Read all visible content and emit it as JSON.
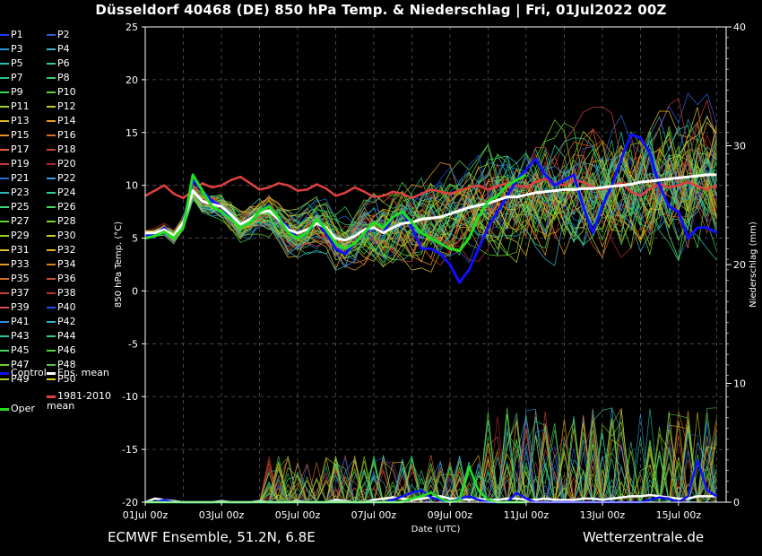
{
  "header": {
    "title": "Düsseldorf 40468 (DE)  850 hPa Temp. & Niederschlag | Fri, 01Jul2022 00Z"
  },
  "footer": {
    "left": "ECMWF Ensemble, 51.2N, 6.8E",
    "right": "Wetterzentrale.de"
  },
  "legend": {
    "members": [
      "P1",
      "P2",
      "P3",
      "P4",
      "P5",
      "P6",
      "P7",
      "P8",
      "P9",
      "P10",
      "P11",
      "P12",
      "P13",
      "P14",
      "P15",
      "P16",
      "P17",
      "P18",
      "P19",
      "P20",
      "P21",
      "P22",
      "P23",
      "P24",
      "P25",
      "P26",
      "P27",
      "P28",
      "P29",
      "P30",
      "P31",
      "P32",
      "P33",
      "P34",
      "P35",
      "P36",
      "P37",
      "P38",
      "P39",
      "P40",
      "P41",
      "P42",
      "P43",
      "P44",
      "P45",
      "P46",
      "P47",
      "P48",
      "P49",
      "P50"
    ],
    "member_colors": [
      "#1e3cff",
      "#2a5fd8",
      "#1e9bd8",
      "#3fb3c8",
      "#18c4b0",
      "#2ed18a",
      "#22c48a",
      "#3bd060",
      "#36d84a",
      "#5fd02a",
      "#9fd81e",
      "#c8c81a",
      "#e0b81c",
      "#e8a020",
      "#e89030",
      "#d8702a",
      "#e06030",
      "#c84a2a",
      "#c83a3a",
      "#b02a2a",
      "#2a6ad8",
      "#3aa0e0",
      "#30b8c0",
      "#2ad0a0",
      "#38d878",
      "#48d858",
      "#60d838",
      "#78d82a",
      "#98d020",
      "#c8d01e",
      "#e0c020",
      "#e8b020",
      "#e89a28",
      "#d88028",
      "#d86828",
      "#c85030",
      "#c84040",
      "#b83030",
      "#e05050",
      "#2050e8",
      "#3090e0",
      "#30b0d0",
      "#28c8a8",
      "#30d080",
      "#40d860",
      "#50d840",
      "#68d030",
      "#58c048",
      "#a8d020",
      "#e8d020"
    ],
    "control": "Control",
    "ens_mean": "Ens. mean",
    "clim_mean": "1981-2010\nmean",
    "oper": "Oper"
  },
  "chart_data": {
    "type": "line",
    "title": "Düsseldorf 40468 (DE)  850 hPa Temp. & Niederschlag | Fri, 01Jul2022 00Z",
    "xlabel": "Date (UTC)",
    "ylabel": "850 hPa Temp. (°C)",
    "y2label": "Niederschlag (mm)",
    "xlim_hours": [
      0,
      366
    ],
    "ylim": [
      -20,
      25
    ],
    "y2lim": [
      0,
      40
    ],
    "x_ticks": [
      "01Jul 00z",
      "03Jul 00z",
      "05Jul 00z",
      "07Jul 00z",
      "09Jul 00z",
      "11Jul 00z",
      "13Jul 00z",
      "15Jul 00z"
    ],
    "y_ticks": [
      25,
      20,
      15,
      10,
      5,
      0,
      -5,
      -10,
      -15,
      -20
    ],
    "y2_ticks": [
      40,
      30,
      20,
      10,
      0
    ],
    "grid": true,
    "colors": {
      "control": "#1010ff",
      "ens_mean": "#ffffff",
      "clim_mean": "#e04040",
      "oper": "#20e020"
    },
    "series_temp": {
      "control": [
        5.2,
        5.3,
        6.0,
        5.0,
        6.5,
        10.5,
        9.5,
        8.5,
        8.0,
        7.0,
        6.0,
        6.5,
        7.5,
        8.0,
        7.0,
        6.0,
        5.0,
        5.5,
        6.5,
        5.5,
        4.0,
        3.5,
        4.5,
        5.5,
        6.0,
        5.5,
        7.0,
        7.5,
        6.0,
        4.0,
        4.0,
        3.5,
        2.5,
        0.8,
        2.0,
        4.0,
        6.0,
        7.5,
        9.0,
        10.5,
        11.5,
        12.5,
        11.0,
        10.0,
        10.5,
        11.0,
        8.0,
        5.5,
        8.0,
        10.0,
        12.5,
        14.8,
        14.5,
        13.0,
        10.0,
        8.0,
        7.5,
        5.0,
        6.0,
        6.0,
        5.5
      ],
      "ens_mean": [
        5.5,
        5.5,
        5.8,
        5.2,
        6.5,
        9.5,
        8.5,
        8.2,
        8.0,
        7.2,
        6.3,
        6.8,
        7.4,
        7.6,
        6.8,
        5.8,
        5.5,
        5.8,
        6.4,
        6.0,
        5.0,
        4.8,
        5.2,
        5.8,
        6.0,
        5.5,
        6.0,
        6.4,
        6.5,
        6.8,
        6.9,
        7.0,
        7.3,
        7.6,
        7.9,
        8.1,
        8.3,
        8.6,
        8.9,
        8.9,
        9.1,
        9.3,
        9.4,
        9.5,
        9.6,
        9.6,
        9.7,
        9.7,
        9.8,
        9.9,
        10.0,
        10.1,
        10.3,
        10.4,
        10.5,
        10.6,
        10.7,
        10.8,
        10.9,
        11.0,
        11.0
      ],
      "clim_mean": [
        9.0,
        9.5,
        10.0,
        9.2,
        8.8,
        9.5,
        10.2,
        9.8,
        10.0,
        10.5,
        10.8,
        10.2,
        9.6,
        9.8,
        10.2,
        10.0,
        9.5,
        9.6,
        10.1,
        9.7,
        9.0,
        9.3,
        9.8,
        9.4,
        8.9,
        9.0,
        9.4,
        9.2,
        8.8,
        9.2,
        9.6,
        9.4,
        9.2,
        9.5,
        9.8,
        10.0,
        9.6,
        9.9,
        10.2,
        10.0,
        9.8,
        10.3,
        10.6,
        10.2,
        10.0,
        10.5,
        10.3,
        9.8,
        9.6,
        10.0,
        10.2,
        9.4,
        9.0,
        9.7,
        10.1,
        9.8,
        10.0,
        10.3,
        9.9,
        9.6,
        10.0
      ],
      "oper": [
        5.0,
        5.2,
        5.6,
        5.0,
        6.0,
        11.0,
        9.5,
        8.0,
        7.5,
        6.8,
        6.0,
        6.5,
        7.5,
        8.0,
        7.0,
        5.5,
        5.0,
        5.5,
        6.8,
        5.8,
        4.5,
        4.0,
        4.5,
        5.5,
        6.5,
        6.0,
        7.0,
        7.5,
        6.5,
        5.5,
        5.0,
        4.5,
        4.0,
        3.8,
        5.0,
        7.0,
        8.5,
        9.0,
        10.0,
        10.5,
        11.0
      ]
    },
    "series_precip": {
      "control": [
        0,
        0,
        0.2,
        0,
        0,
        0,
        0,
        0,
        0,
        0,
        0,
        0,
        0,
        0,
        0,
        0,
        0,
        0,
        0,
        0,
        0,
        0,
        0,
        0,
        0,
        0,
        0.2,
        0.5,
        0.8,
        1.0,
        0.4,
        0.2,
        0,
        0.3,
        0.5,
        0.2,
        0,
        0,
        0,
        0.8,
        0.3,
        0,
        0,
        0,
        0,
        0,
        0,
        0,
        0,
        0,
        0,
        0,
        0,
        0.2,
        0.4,
        0.3,
        0,
        0.5,
        3.5,
        1.0,
        0.5
      ],
      "ens_mean": [
        0,
        0.3,
        0.2,
        0.1,
        0,
        0,
        0,
        0,
        0.1,
        0,
        0,
        0,
        0.1,
        0,
        0,
        0,
        0.1,
        0,
        0,
        0,
        0.2,
        0.1,
        0,
        0,
        0.2,
        0.3,
        0.4,
        0.3,
        0.2,
        0.3,
        0.4,
        0.5,
        0.3,
        0.3,
        0.2,
        0.3,
        0.2,
        0.2,
        0.3,
        0.3,
        0.2,
        0.2,
        0.3,
        0.2,
        0.2,
        0.2,
        0.3,
        0.3,
        0.2,
        0.3,
        0.4,
        0.5,
        0.5,
        0.6,
        0.5,
        0.4,
        0.3,
        0.3,
        0.5,
        0.5,
        0.5
      ],
      "clim_mean": [
        0,
        0,
        0,
        0,
        0,
        0,
        0,
        0,
        0,
        0,
        0,
        0,
        0,
        0,
        0,
        0,
        0,
        0,
        0,
        0,
        0,
        0,
        0,
        0,
        0,
        0,
        0,
        0,
        0,
        0,
        0,
        0,
        0,
        0,
        0,
        0,
        0,
        0,
        0,
        0,
        0,
        0,
        0,
        0,
        0,
        0,
        0,
        0,
        0,
        0,
        0,
        0,
        0,
        0,
        0,
        0,
        0,
        0,
        0,
        0,
        0
      ],
      "oper": [
        0,
        0,
        0,
        0,
        0,
        0,
        0,
        0,
        0,
        0,
        0,
        0,
        0,
        0,
        0,
        0,
        0,
        0,
        0,
        0,
        0,
        0,
        0,
        0,
        0,
        0,
        0,
        0,
        0.3,
        0.5,
        0.8,
        0.3,
        0,
        0.2,
        3.0,
        1.0,
        0.2,
        0,
        0,
        0,
        0
      ]
    },
    "step_hours": 6
  }
}
